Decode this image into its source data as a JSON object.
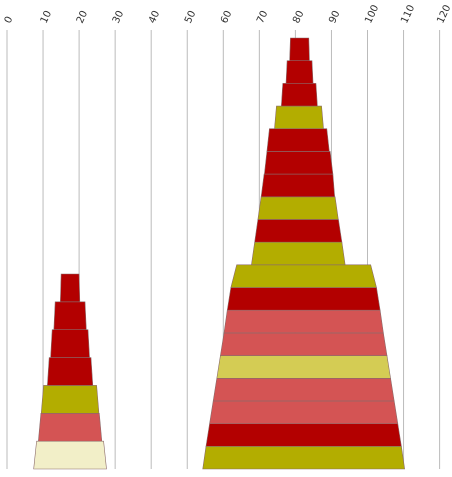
{
  "chart_data": {
    "type": "area",
    "title": "",
    "xlabel": "",
    "ylabel": "",
    "x_ticks": [
      0,
      10,
      20,
      30,
      40,
      50,
      60,
      70,
      80,
      90,
      100,
      110,
      120
    ],
    "xlim": [
      0,
      120
    ],
    "grid": true,
    "shapes": [
      {
        "name": "",
        "center": 17.5,
        "segments": [
          {
            "left": 7.4,
            "right": 27.6,
            "color": "#f2efc8"
          },
          {
            "left": 8.7,
            "right": 26.3,
            "color": "#d45454"
          },
          {
            "left": 9.5,
            "right": 25.5,
            "color": "#b3ad00"
          },
          {
            "left": 11.2,
            "right": 23.8,
            "color": "#b30000"
          },
          {
            "left": 12.1,
            "right": 22.9,
            "color": "#b30000"
          },
          {
            "left": 13.0,
            "right": 22.0,
            "color": "#b30000"
          },
          {
            "left": 14.8,
            "right": 20.2,
            "color": "#b30000"
          }
        ]
      },
      {
        "name": "",
        "center": 82.2,
        "segments": [
          {
            "left": 54.3,
            "right": 110.3,
            "color": "#b3ad00"
          },
          {
            "left": 55.2,
            "right": 109.4,
            "color": "#b30000"
          },
          {
            "left": 56.2,
            "right": 108.4,
            "color": "#d45454"
          },
          {
            "left": 57.2,
            "right": 107.4,
            "color": "#d45454"
          },
          {
            "left": 58.2,
            "right": 106.4,
            "color": "#d4cc54"
          },
          {
            "left": 59.2,
            "right": 105.4,
            "color": "#d45454"
          },
          {
            "left": 60.2,
            "right": 104.4,
            "color": "#d45454"
          },
          {
            "left": 61.1,
            "right": 103.5,
            "color": "#b30000"
          },
          {
            "left": 62.1,
            "right": 102.5,
            "color": "#b3ad00"
          },
          {
            "left": 67.8,
            "right": 93.8,
            "color": "#b3ad00"
          },
          {
            "left": 68.7,
            "right": 92.9,
            "color": "#b30000"
          },
          {
            "left": 69.6,
            "right": 91.9,
            "color": "#b3ad00"
          },
          {
            "left": 70.5,
            "right": 90.9,
            "color": "#b30000"
          },
          {
            "left": 71.4,
            "right": 90.4,
            "color": "#b30000"
          },
          {
            "left": 72.1,
            "right": 89.4,
            "color": "#b30000"
          },
          {
            "left": 74.2,
            "right": 87.8,
            "color": "#b3ad00"
          },
          {
            "left": 76.1,
            "right": 86.1,
            "color": "#b30000"
          },
          {
            "left": 77.4,
            "right": 84.9,
            "color": "#b30000"
          },
          {
            "left": 78.4,
            "right": 83.9,
            "color": "#b30000"
          }
        ]
      }
    ]
  }
}
